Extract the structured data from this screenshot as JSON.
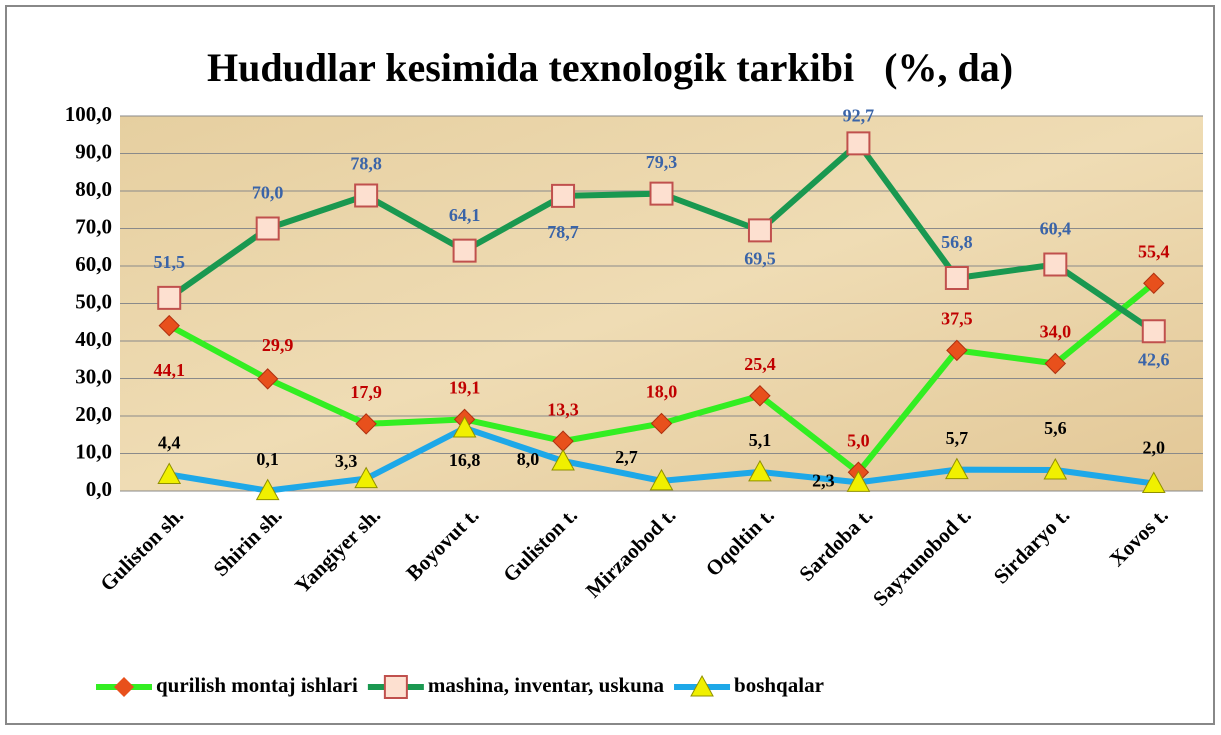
{
  "chart_data": {
    "type": "line",
    "title": "Hududlar kesimida texnologik tarkibi   (%, da)",
    "categories": [
      "Guliston sh.",
      "Shirin sh.",
      "Yangiyer sh.",
      "Boyovut t.",
      "Guliston t.",
      "Mirzaobod t.",
      "Oqoltin t.",
      "Sardoba t.",
      "Sayxunobod t.",
      "Sirdaryo t.",
      "Xovos t."
    ],
    "series": [
      {
        "name": "qurilish montaj ishlari",
        "color": "#33ee22",
        "marker_color": "#e8501c",
        "marker": "diamond",
        "label_color": "#c00000",
        "values": [
          44.1,
          29.9,
          17.9,
          19.1,
          13.3,
          18.0,
          25.4,
          5.0,
          37.5,
          34.0,
          55.4
        ],
        "value_labels": [
          "44,1",
          "29,9",
          "17,9",
          "19,1",
          "13,3",
          "18,0",
          "25,4",
          "5,0",
          "37,5",
          "34,0",
          "55,4"
        ]
      },
      {
        "name": "mashina, inventar, uskuna",
        "color": "#1a9850",
        "marker_color": "#fde0d0",
        "marker": "square",
        "label_color": "#3a64a8",
        "values": [
          51.5,
          70.0,
          78.8,
          64.1,
          78.7,
          79.3,
          69.5,
          92.7,
          56.8,
          60.4,
          42.6
        ],
        "value_labels": [
          "51,5",
          "70,0",
          "78,8",
          "64,1",
          "78,7",
          "79,3",
          "69,5",
          "92,7",
          "56,8",
          "60,4",
          "42,6"
        ]
      },
      {
        "name": "boshqalar",
        "color": "#1ea8e8",
        "marker_color": "#f0f000",
        "marker": "triangle",
        "label_color": "#000000",
        "values": [
          4.4,
          0.1,
          3.3,
          16.8,
          8.0,
          2.7,
          5.1,
          2.3,
          5.7,
          5.6,
          2.0
        ],
        "value_labels": [
          "4,4",
          "0,1",
          "3,3",
          "16,8",
          "8,0",
          "2,7",
          "5,1",
          "2,3",
          "5,7",
          "5,6",
          "2,0"
        ]
      }
    ],
    "ylim": [
      0,
      100
    ],
    "yticks": [
      {
        "value": 0,
        "label": "0,0"
      },
      {
        "value": 10,
        "label": "10,0"
      },
      {
        "value": 20,
        "label": "20,0"
      },
      {
        "value": 30,
        "label": "30,0"
      },
      {
        "value": 40,
        "label": "40,0"
      },
      {
        "value": 50,
        "label": "50,0"
      },
      {
        "value": 60,
        "label": "60,0"
      },
      {
        "value": 70,
        "label": "70,0"
      },
      {
        "value": 80,
        "label": "80,0"
      },
      {
        "value": 90,
        "label": "90,0"
      },
      {
        "value": 100,
        "label": "100,0"
      }
    ],
    "grid": true,
    "legend": "bottom"
  }
}
